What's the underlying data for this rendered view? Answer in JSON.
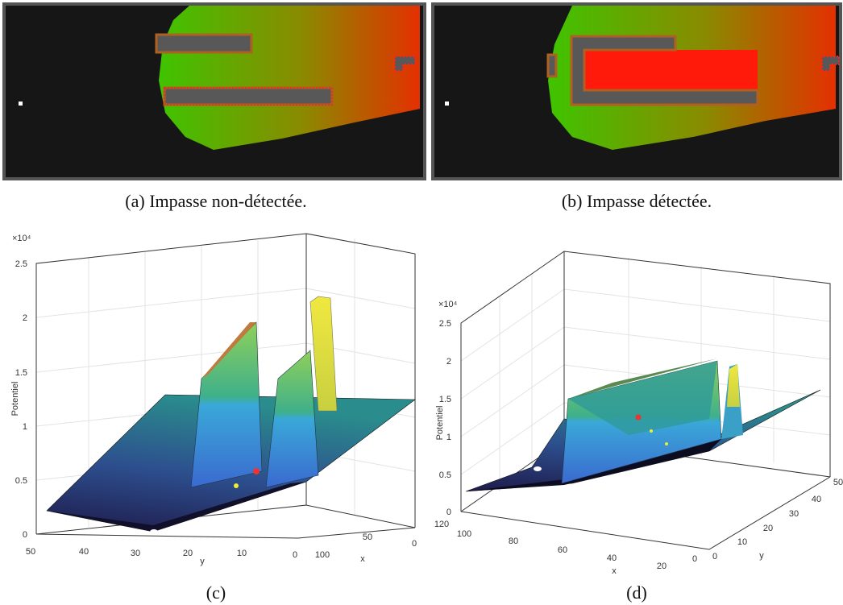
{
  "subfigures": [
    {
      "caption": "(a) Impasse non-détectée."
    },
    {
      "caption": "(b) Impasse détectée."
    },
    {
      "caption": "(c)",
      "multiplier": "×10⁴",
      "zlabel": "Potentiel",
      "zticks": [
        0,
        0.5,
        1,
        1.5,
        2,
        2.5
      ],
      "ylabel": "y",
      "yticks": [
        50,
        40,
        30,
        20,
        10,
        0
      ],
      "xlabel": "x",
      "xticks": [
        100,
        50,
        0
      ]
    },
    {
      "caption": "(d)",
      "multiplier": "×10⁴",
      "zlabel": "Potentiel",
      "zticks": [
        0,
        0.5,
        1,
        1.5,
        2,
        2.5
      ],
      "xlabel": "x",
      "xticks": [
        120,
        100,
        80,
        60,
        40,
        20,
        0
      ],
      "ylabel": "y",
      "yticks": [
        0,
        10,
        20,
        30,
        40,
        50
      ]
    }
  ]
}
